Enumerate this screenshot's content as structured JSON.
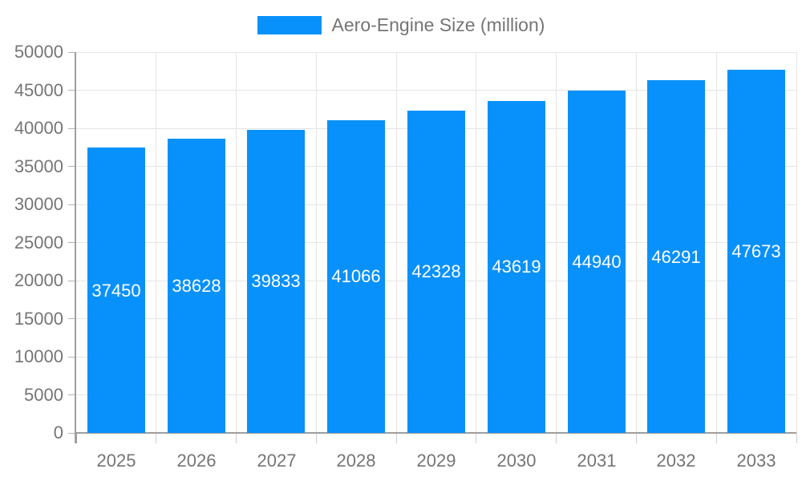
{
  "chart_data": {
    "type": "bar",
    "title": "",
    "legend_label": "Aero-Engine Size (million)",
    "legend_position": "top",
    "categories": [
      "2025",
      "2026",
      "2027",
      "2028",
      "2029",
      "2030",
      "2031",
      "2032",
      "2033"
    ],
    "series": [
      {
        "name": "Aero-Engine Size (million)",
        "values": [
          37450,
          38628,
          39833,
          41066,
          42328,
          43619,
          44940,
          46291,
          47673
        ]
      }
    ],
    "value_labels_shown": true,
    "xlabel": "",
    "ylabel": "",
    "ylim": [
      0,
      50000
    ],
    "ytick_step": 5000,
    "yticks": [
      0,
      5000,
      10000,
      15000,
      20000,
      25000,
      30000,
      35000,
      40000,
      45000,
      50000
    ],
    "grid": true,
    "colors": {
      "bar": "#0991fb",
      "bar_value_text": "#ffffff",
      "axis_text": "#757575",
      "grid_line": "#e5e5e5",
      "axis_line": "#9e9e9e"
    }
  }
}
